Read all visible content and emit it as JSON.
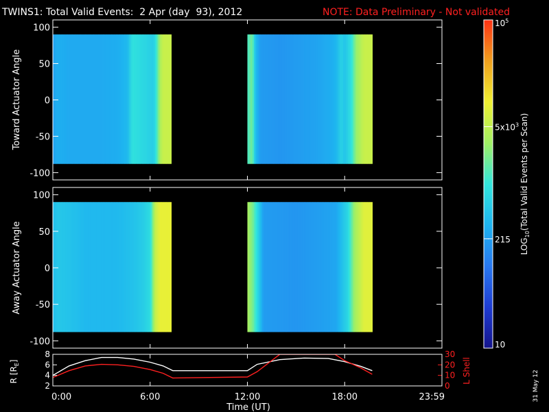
{
  "header": {
    "title": "TWINS1: Total Valid Events:  2 Apr (day  93), 2012",
    "note": "NOTE: Data Preliminary - Not validated",
    "note_color": "#ff2020"
  },
  "colorbar": {
    "label": "LOG10(Total Valid Events per Scan)",
    "label_main": "LOG",
    "label_sub": "10",
    "label_rest": "(Total Valid Events per Scan)",
    "ticks": [
      {
        "value": 100000,
        "base": "10",
        "exp": "5"
      },
      {
        "value": 5000,
        "base": "5x10",
        "exp": "3"
      },
      {
        "value": 215,
        "base": "215",
        "exp": ""
      },
      {
        "value": 10,
        "base": "10",
        "exp": ""
      }
    ],
    "range": [
      10,
      100000
    ],
    "scale": "log"
  },
  "footer": {
    "xlabel": "Time (UT)",
    "date_stamp": "31 May 12",
    "xticks": [
      "0:00",
      "6:00",
      "12:00",
      "18:00",
      "23:59"
    ],
    "xtick_hours": [
      0,
      6,
      12,
      18,
      24
    ]
  },
  "chart_data": [
    {
      "type": "heatmap",
      "ylabel": "Toward Actuator Angle",
      "ylim": [
        -110,
        110
      ],
      "yticks": [
        100,
        50,
        0,
        -50,
        -100
      ],
      "xlim_hours": [
        0,
        24
      ],
      "angle_range": [
        -88,
        90
      ],
      "data_segments_hours": [
        [
          0,
          7.3
        ],
        [
          12,
          19.7
        ]
      ],
      "colormap_stops": [
        "#14148c",
        "#1e3cd2",
        "#2878f0",
        "#1eb4f0",
        "#32e6dc",
        "#a0f064",
        "#f0f032",
        "#f0a01e",
        "#ff3214"
      ],
      "profile_log10": [
        [
          0.0,
          2.3
        ],
        [
          0.2,
          2.45
        ],
        [
          0.5,
          2.45
        ],
        [
          1.0,
          2.42
        ],
        [
          2.0,
          2.42
        ],
        [
          3.0,
          2.42
        ],
        [
          4.0,
          2.45
        ],
        [
          4.6,
          2.55
        ],
        [
          4.9,
          2.95
        ],
        [
          5.6,
          2.85
        ],
        [
          6.2,
          2.75
        ],
        [
          6.4,
          3.05
        ],
        [
          6.6,
          3.55
        ],
        [
          6.8,
          3.75
        ],
        [
          7.3,
          3.75
        ],
        [
          12.0,
          3.1
        ],
        [
          12.3,
          3.3
        ],
        [
          12.5,
          2.6
        ],
        [
          12.8,
          2.3
        ],
        [
          14.0,
          2.25
        ],
        [
          16.0,
          2.35
        ],
        [
          17.2,
          2.45
        ],
        [
          17.5,
          2.55
        ],
        [
          17.8,
          2.8
        ],
        [
          18.0,
          2.65
        ],
        [
          18.4,
          2.95
        ],
        [
          18.7,
          3.45
        ],
        [
          19.2,
          3.75
        ],
        [
          19.7,
          3.75
        ]
      ]
    },
    {
      "type": "heatmap",
      "ylabel": "Away Actuator Angle",
      "ylim": [
        -110,
        110
      ],
      "yticks": [
        100,
        50,
        0,
        -50,
        -100
      ],
      "xlim_hours": [
        0,
        24
      ],
      "angle_range": [
        -88,
        90
      ],
      "data_segments_hours": [
        [
          0,
          7.3
        ],
        [
          12,
          19.7
        ]
      ],
      "colormap_stops": [
        "#14148c",
        "#1e3cd2",
        "#2878f0",
        "#1eb4f0",
        "#32e6dc",
        "#a0f064",
        "#f0f032",
        "#f0a01e",
        "#ff3214"
      ],
      "profile_log10": [
        [
          0.0,
          2.6
        ],
        [
          0.3,
          2.7
        ],
        [
          1.0,
          2.65
        ],
        [
          2.0,
          2.55
        ],
        [
          3.0,
          2.55
        ],
        [
          4.0,
          2.55
        ],
        [
          5.0,
          2.65
        ],
        [
          5.6,
          2.75
        ],
        [
          6.0,
          2.9
        ],
        [
          6.3,
          3.7
        ],
        [
          6.6,
          3.95
        ],
        [
          7.3,
          3.95
        ],
        [
          12.0,
          3.55
        ],
        [
          12.3,
          3.35
        ],
        [
          12.6,
          2.9
        ],
        [
          13.0,
          2.3
        ],
        [
          15.0,
          2.25
        ],
        [
          17.0,
          2.35
        ],
        [
          17.5,
          2.4
        ],
        [
          18.2,
          2.85
        ],
        [
          18.6,
          3.5
        ],
        [
          19.2,
          3.9
        ],
        [
          19.7,
          3.9
        ]
      ]
    },
    {
      "type": "line",
      "ylabel_left": "R [RE]",
      "ylabel_left_main": "R [R",
      "ylabel_left_sub": "E",
      "ylabel_left_rest": "]",
      "ylabel_right": "L Shell",
      "ylim_left": [
        2,
        8
      ],
      "yticks_left": [
        2,
        4,
        6,
        8
      ],
      "ylim_right": [
        0,
        30
      ],
      "yticks_right": [
        0,
        10,
        20,
        30
      ],
      "series": [
        {
          "name": "",
          "axis": "left",
          "color": "#ffffff",
          "x": [
            0.0,
            1.0,
            2.0,
            3.0,
            4.0,
            5.0,
            6.0,
            6.8,
            7.4,
            12.0,
            12.6,
            14.0,
            15.5,
            17.0,
            18.0,
            19.0,
            19.7
          ],
          "y": [
            4.0,
            5.8,
            6.8,
            7.4,
            7.4,
            7.1,
            6.5,
            5.8,
            4.9,
            4.9,
            6.1,
            7.0,
            7.3,
            7.2,
            6.6,
            5.7,
            4.9
          ]
        },
        {
          "name": "",
          "axis": "right",
          "color": "#ff2020",
          "x": [
            0.0,
            1.0,
            2.0,
            3.0,
            4.0,
            5.0,
            6.0,
            6.8,
            7.4,
            12.0,
            12.6,
            14.0,
            16.5,
            17.4,
            18.0,
            19.0,
            19.7
          ],
          "y": [
            8.0,
            14.5,
            19.0,
            20.5,
            20.0,
            18.5,
            15.5,
            12.0,
            7.5,
            8.5,
            13.5,
            30.0,
            30.0,
            30.0,
            24.0,
            17.0,
            11.0
          ]
        }
      ]
    }
  ]
}
